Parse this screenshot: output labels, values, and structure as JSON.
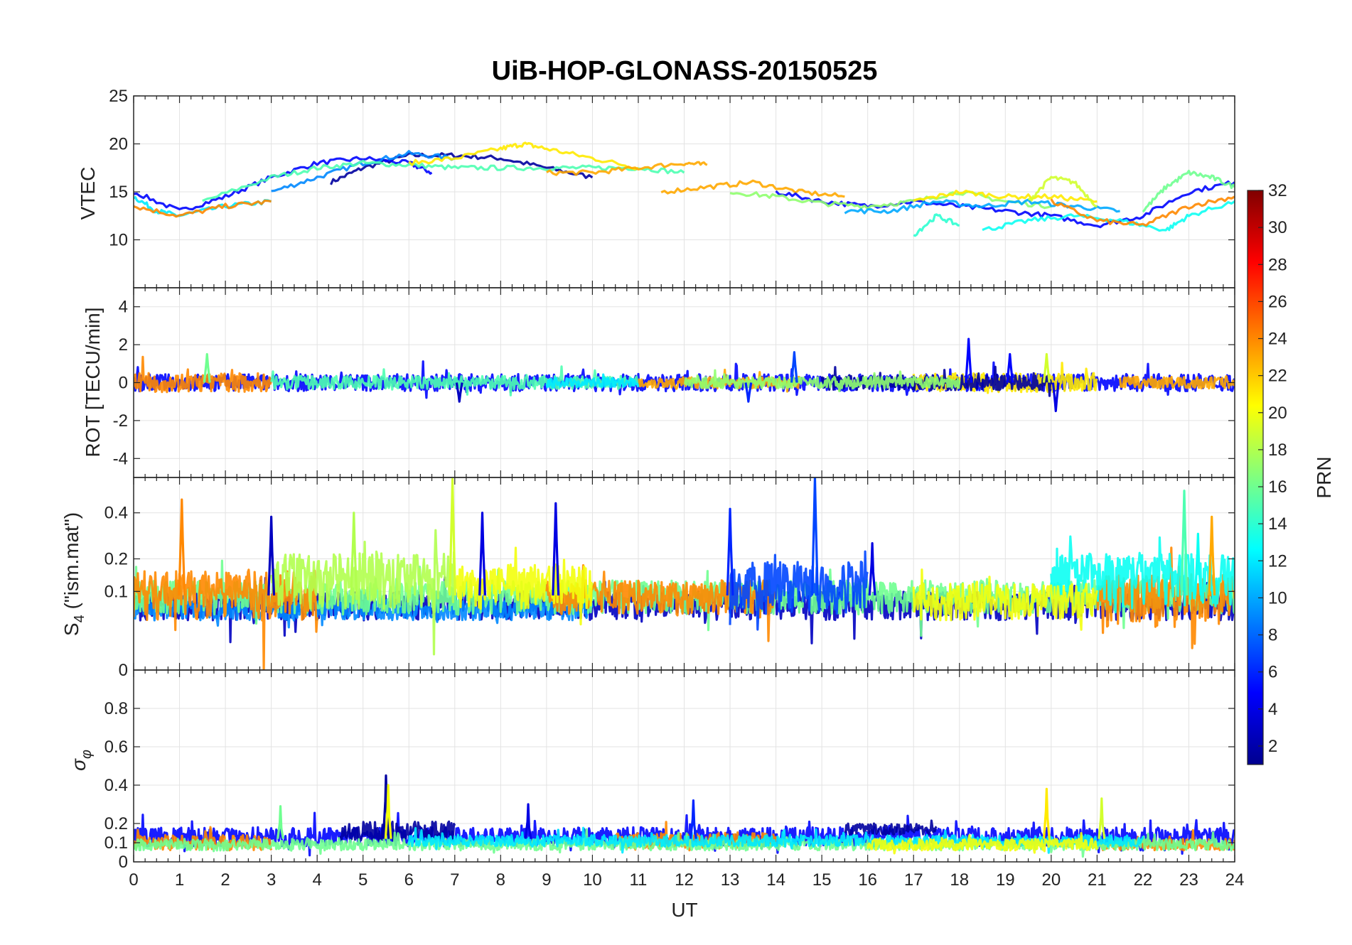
{
  "chart_data": {
    "type": "line",
    "title": "UiB-HOP-GLONASS-20150525",
    "xlabel": "UT",
    "xlim": [
      0,
      24
    ],
    "x_ticks": [
      "0",
      "1",
      "2",
      "3",
      "4",
      "5",
      "6",
      "7",
      "8",
      "9",
      "10",
      "11",
      "12",
      "13",
      "14",
      "15",
      "16",
      "17",
      "18",
      "19",
      "20",
      "21",
      "22",
      "23",
      "24"
    ],
    "grid": true,
    "colorbar": {
      "label": "PRN",
      "range": [
        1,
        32
      ],
      "colormap": "jet",
      "ticks": [
        "2",
        "4",
        "6",
        "8",
        "10",
        "12",
        "14",
        "16",
        "18",
        "20",
        "22",
        "24",
        "26",
        "28",
        "30",
        "32"
      ],
      "placement": "right"
    },
    "panels": [
      {
        "ylabel": "VTEC",
        "ylim": [
          5,
          25
        ],
        "y_ticks": [
          {
            "v": 10,
            "label": "10"
          },
          {
            "v": 15,
            "label": "15"
          },
          {
            "v": 20,
            "label": "20"
          },
          {
            "v": 25,
            "label": "25"
          }
        ],
        "series": [
          {
            "prn": 2,
            "x": [
              4.3,
              5,
              6,
              7,
              8,
              9,
              10
            ],
            "y": [
              16,
              17.5,
              18.8,
              18.8,
              18.5,
              17.5,
              16.5
            ]
          },
          {
            "prn": 5,
            "x": [
              0,
              1,
              2,
              3,
              4,
              5,
              6,
              6.5
            ],
            "y": [
              15,
              13,
              14.5,
              16.5,
              18,
              18.5,
              18,
              17
            ]
          },
          {
            "prn": 9,
            "x": [
              3,
              4,
              5,
              6,
              7
            ],
            "y": [
              15,
              16.5,
              18,
              19,
              18.5
            ]
          },
          {
            "prn": 12,
            "x": [
              0,
              0.5,
              1,
              2,
              3
            ],
            "y": [
              14.5,
              13,
              12.5,
              13.5,
              14
            ]
          },
          {
            "prn": 15,
            "x": [
              1.5,
              3,
              4,
              5,
              6,
              7,
              8,
              9,
              10,
              11,
              12
            ],
            "y": [
              14,
              16.5,
              17.5,
              18,
              17.8,
              17.5,
              17.5,
              17.5,
              17.5,
              17.5,
              17
            ]
          },
          {
            "prn": 21,
            "x": [
              6,
              7,
              8,
              8.5,
              9,
              10,
              11
            ],
            "y": [
              18,
              18.5,
              19.5,
              20,
              19.5,
              18.5,
              17.5
            ]
          },
          {
            "prn": 24,
            "x": [
              0,
              1,
              2,
              3
            ],
            "y": [
              13.5,
              12.5,
              13.5,
              14
            ]
          },
          {
            "prn": 23,
            "x": [
              9,
              10,
              11,
              12,
              12.5
            ],
            "y": [
              17,
              17,
              17.5,
              18,
              17.8
            ]
          },
          {
            "prn": 23,
            "x": [
              11.5,
              12.5,
              13.5,
              14.5,
              15.5
            ],
            "y": [
              15,
              15.5,
              16,
              15,
              14.5
            ]
          },
          {
            "prn": 5,
            "x": [
              14,
              15,
              16,
              17,
              18,
              19,
              20,
              21,
              22,
              23,
              24
            ],
            "y": [
              15,
              14,
              13.5,
              14,
              13.5,
              13,
              12.5,
              11.5,
              12.5,
              15,
              16
            ]
          },
          {
            "prn": 17,
            "x": [
              13,
              14,
              15,
              16,
              17,
              18,
              19,
              20
            ],
            "y": [
              15,
              14.5,
              13.8,
              13.5,
              14,
              15,
              14,
              13.5
            ]
          },
          {
            "prn": 10,
            "x": [
              15.5,
              16.5,
              17.5,
              18.5,
              19.5,
              20.5,
              21.5
            ],
            "y": [
              13,
              13,
              14,
              13.5,
              14,
              13.5,
              13
            ]
          },
          {
            "prn": 21,
            "x": [
              17,
              18,
              19,
              20,
              21
            ],
            "y": [
              14,
              15,
              14.5,
              14.5,
              14
            ]
          },
          {
            "prn": 19,
            "x": [
              19.5,
              20,
              20.5,
              21
            ],
            "y": [
              14,
              16.5,
              16,
              13.5
            ]
          },
          {
            "prn": 13,
            "x": [
              18.5,
              19.5,
              20.5,
              21.5,
              22.5,
              23,
              24
            ],
            "y": [
              11,
              12,
              12.5,
              12,
              11,
              12.5,
              14
            ]
          },
          {
            "prn": 24,
            "x": [
              20,
              21,
              22,
              23,
              24
            ],
            "y": [
              14,
              12,
              11.5,
              13.5,
              14.5
            ]
          },
          {
            "prn": 16,
            "x": [
              22,
              22.5,
              23,
              23.5,
              24
            ],
            "y": [
              13,
              15.5,
              17,
              16.5,
              15.5
            ]
          },
          {
            "prn": 14,
            "x": [
              17,
              17.5,
              18
            ],
            "y": [
              10.5,
              12.5,
              11.5
            ]
          }
        ]
      },
      {
        "ylabel": "ROT [TECU/min]",
        "ylim": [
          -5,
          5
        ],
        "y_ticks": [
          {
            "v": -4,
            "label": "-4"
          },
          {
            "v": -2,
            "label": "-2"
          },
          {
            "v": 0,
            "label": "0"
          },
          {
            "v": 2,
            "label": "2"
          },
          {
            "v": 4,
            "label": "4"
          }
        ],
        "series": [
          {
            "prn": 5,
            "mode": "noise",
            "x": [
              0,
              24
            ],
            "level": 0,
            "amp": 0.45
          },
          {
            "prn": 24,
            "mode": "noise",
            "x": [
              0,
              3
            ],
            "level": 0,
            "amp": 0.5
          },
          {
            "prn": 15,
            "mode": "noise",
            "x": [
              3,
              11
            ],
            "level": 0,
            "amp": 0.35
          },
          {
            "prn": 21,
            "mode": "noise",
            "x": [
              17,
              21
            ],
            "level": 0,
            "amp": 0.5
          },
          {
            "prn": 2,
            "mode": "noise",
            "x": [
              15,
              20
            ],
            "level": 0,
            "amp": 0.4
          },
          {
            "prn": 23,
            "mode": "noise",
            "x": [
              11,
              14.5
            ],
            "level": 0,
            "amp": 0.3
          },
          {
            "prn": 23,
            "mode": "noise",
            "x": [
              21.5,
              24
            ],
            "level": 0,
            "amp": 0.3
          },
          {
            "prn": 17,
            "mode": "noise",
            "x": [
              12,
              18
            ],
            "level": 0,
            "amp": 0.3
          },
          {
            "prn": 12,
            "mode": "noise",
            "x": [
              9,
              11
            ],
            "level": 0,
            "amp": 0.25
          }
        ],
        "spikes": [
          {
            "prn": 5,
            "x": 18.2,
            "y": 2.3
          },
          {
            "prn": 7,
            "x": 14.4,
            "y": 1.6
          },
          {
            "prn": 5,
            "x": 19.1,
            "y": 1.5
          },
          {
            "prn": 19,
            "x": 19.9,
            "y": 1.5
          },
          {
            "prn": 16,
            "x": 1.6,
            "y": 1.5
          },
          {
            "prn": 4,
            "x": 20.1,
            "y": -1.5
          },
          {
            "prn": 3,
            "x": 7.1,
            "y": -1.0
          },
          {
            "prn": 6,
            "x": 13.4,
            "y": -1.0
          }
        ]
      },
      {
        "ylabel": "S4 (\"ism.mat\")",
        "ylabel_main": "S",
        "ylabel_sub": "4",
        "ylabel_rest": " (\"ism.mat\")",
        "scale": "sqrt",
        "ylim": [
          0,
          0.6
        ],
        "y_ticks": [
          {
            "v": 0,
            "label": "0"
          },
          {
            "v": 0.1,
            "label": "0.1"
          },
          {
            "v": 0.2,
            "label": "0.2"
          },
          {
            "v": 0.4,
            "label": "0.4"
          }
        ],
        "series": [
          {
            "prn": 3,
            "mode": "noise",
            "x": [
              0,
              24
            ],
            "level": 0.07,
            "amp": 0.03
          },
          {
            "prn": 9,
            "mode": "noise",
            "x": [
              0,
              10
            ],
            "level": 0.06,
            "amp": 0.02
          },
          {
            "prn": 16,
            "mode": "noise",
            "x": [
              0,
              24
            ],
            "level": 0.09,
            "amp": 0.04
          },
          {
            "prn": 24,
            "mode": "noise",
            "x": [
              0,
              4
            ],
            "level": 0.1,
            "amp": 0.06
          },
          {
            "prn": 24,
            "mode": "noise",
            "x": [
              9,
              14
            ],
            "level": 0.09,
            "amp": 0.04
          },
          {
            "prn": 24,
            "mode": "noise",
            "x": [
              21,
              24
            ],
            "level": 0.09,
            "amp": 0.06
          },
          {
            "prn": 18,
            "mode": "noise",
            "x": [
              3,
              7
            ],
            "level": 0.14,
            "amp": 0.08
          },
          {
            "prn": 20,
            "mode": "noise",
            "x": [
              7,
              10
            ],
            "level": 0.12,
            "amp": 0.06
          },
          {
            "prn": 7,
            "mode": "noise",
            "x": [
              13,
              16
            ],
            "level": 0.12,
            "amp": 0.07
          },
          {
            "prn": 13,
            "mode": "noise",
            "x": [
              20,
              24
            ],
            "level": 0.14,
            "amp": 0.08
          },
          {
            "prn": 20,
            "mode": "noise",
            "x": [
              17,
              21
            ],
            "level": 0.08,
            "amp": 0.04
          }
        ],
        "spikes": [
          {
            "prn": 24,
            "x": 1.05,
            "y": 0.47
          },
          {
            "prn": 19,
            "x": 6.95,
            "y": 0.59
          },
          {
            "prn": 4,
            "x": 9.2,
            "y": 0.45
          },
          {
            "prn": 7,
            "x": 14.85,
            "y": 0.6
          },
          {
            "prn": 15,
            "x": 22.9,
            "y": 0.52
          },
          {
            "prn": 18,
            "x": 4.8,
            "y": 0.4
          },
          {
            "prn": 4,
            "x": 7.6,
            "y": 0.4
          },
          {
            "prn": 3,
            "x": 3.0,
            "y": 0.38
          },
          {
            "prn": 6,
            "x": 13.0,
            "y": 0.42
          },
          {
            "prn": 23,
            "x": 23.5,
            "y": 0.38
          },
          {
            "prn": 13,
            "x": 23.2,
            "y": 0.3
          },
          {
            "prn": 4,
            "x": 16.1,
            "y": 0.26
          }
        ]
      },
      {
        "ylabel": "σφ",
        "ylabel_main": "σ",
        "ylabel_sub": "φ",
        "ylim": [
          0,
          1
        ],
        "y_ticks": [
          {
            "v": 0,
            "label": "0"
          },
          {
            "v": 0.1,
            "label": "0.1"
          },
          {
            "v": 0.2,
            "label": "0.2"
          },
          {
            "v": 0.4,
            "label": "0.4"
          },
          {
            "v": 0.6,
            "label": "0.6"
          },
          {
            "v": 0.8,
            "label": "0.8"
          }
        ],
        "series": [
          {
            "prn": 5,
            "mode": "noise",
            "x": [
              0,
              24
            ],
            "level": 0.13,
            "amp": 0.05
          },
          {
            "prn": 2,
            "mode": "noise",
            "x": [
              4.5,
              7
            ],
            "level": 0.16,
            "amp": 0.05
          },
          {
            "prn": 2,
            "mode": "noise",
            "x": [
              15.5,
              17.5
            ],
            "level": 0.17,
            "amp": 0.03
          },
          {
            "prn": 24,
            "mode": "noise",
            "x": [
              0,
              3
            ],
            "level": 0.1,
            "amp": 0.04
          },
          {
            "prn": 24,
            "mode": "noise",
            "x": [
              10.5,
              14
            ],
            "level": 0.11,
            "amp": 0.04
          },
          {
            "prn": 24,
            "mode": "noise",
            "x": [
              21,
              24
            ],
            "level": 0.09,
            "amp": 0.03
          },
          {
            "prn": 16,
            "mode": "noise",
            "x": [
              0,
              24
            ],
            "level": 0.09,
            "amp": 0.03
          },
          {
            "prn": 12,
            "mode": "noise",
            "x": [
              6,
              22
            ],
            "level": 0.11,
            "amp": 0.03
          },
          {
            "prn": 20,
            "mode": "noise",
            "x": [
              16,
              21
            ],
            "level": 0.09,
            "amp": 0.03
          }
        ],
        "spikes": [
          {
            "prn": 2,
            "x": 5.5,
            "y": 0.45
          },
          {
            "prn": 20,
            "x": 5.55,
            "y": 0.4
          },
          {
            "prn": 21,
            "x": 19.9,
            "y": 0.38
          },
          {
            "prn": 16,
            "x": 3.2,
            "y": 0.29
          },
          {
            "prn": 19,
            "x": 21.1,
            "y": 0.33
          },
          {
            "prn": 6,
            "x": 12.2,
            "y": 0.32
          },
          {
            "prn": 4,
            "x": 8.6,
            "y": 0.3
          }
        ]
      }
    ]
  }
}
